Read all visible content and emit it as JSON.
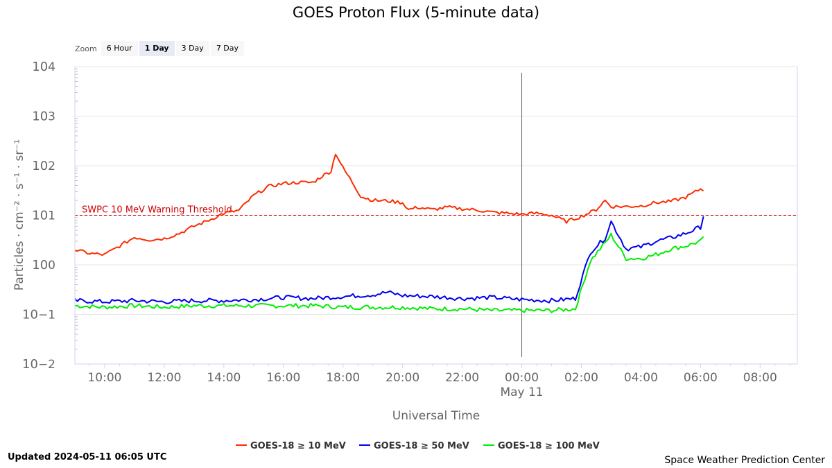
{
  "title": "GOES Proton Flux (5-minute data)",
  "zoom": {
    "label": "Zoom",
    "buttons": [
      {
        "label": "6 Hour",
        "active": false
      },
      {
        "label": "1 Day",
        "active": true
      },
      {
        "label": "3 Day",
        "active": false
      },
      {
        "label": "7 Day",
        "active": false
      }
    ]
  },
  "updated": "Updated 2024-05-11 06:05 UTC",
  "credit": "Space Weather Prediction Center",
  "colors": {
    "series_10": "#ff2a00",
    "series_50": "#0000ee",
    "series_100": "#00ee00",
    "threshold": "#cc0000",
    "grid": "#e6e6e6",
    "axis": "#999999"
  },
  "chart_data": {
    "type": "line",
    "title": "GOES Proton Flux (5-minute data)",
    "xlabel": "Universal Time",
    "ylabel": "Particles · cm⁻² · s⁻¹ · sr⁻¹",
    "y_scale": "log",
    "xlim": [
      "2024-05-10 09:00",
      "2024-05-11 09:30"
    ],
    "ylim": [
      0.01,
      10000
    ],
    "grid": true,
    "legend": "bottom-center",
    "x_ticks": [
      "10:00",
      "12:00",
      "14:00",
      "16:00",
      "18:00",
      "20:00",
      "22:00",
      "00:00",
      "02:00",
      "04:00",
      "06:00",
      "08:00"
    ],
    "x_tick_hours": [
      10,
      12,
      14,
      16,
      18,
      20,
      22,
      24,
      26,
      28,
      30,
      32
    ],
    "date_label": "May 11",
    "date_label_hour": 24,
    "y_ticks": [
      {
        "base": "10",
        "exp": "4",
        "value": 10000
      },
      {
        "base": "10",
        "exp": "3",
        "value": 1000
      },
      {
        "base": "10",
        "exp": "2",
        "value": 100
      },
      {
        "base": "10",
        "exp": "1",
        "value": 10
      },
      {
        "base": "10",
        "exp": "0",
        "value": 1
      },
      {
        "base": "10",
        "exp": "−1",
        "value": 0.1
      },
      {
        "base": "10",
        "exp": "−2",
        "value": 0.01
      }
    ],
    "crosshair_hour": 24,
    "threshold": {
      "label": "SWPC 10 MeV Warning Threshold",
      "value": 10
    },
    "series": [
      {
        "name": "GOES-18 ≥ 10 MeV",
        "x_hours": [
          9.0,
          9.5,
          10.0,
          10.5,
          11.0,
          11.5,
          12.0,
          12.5,
          13.0,
          13.5,
          14.0,
          14.5,
          15.0,
          15.5,
          16.0,
          16.5,
          17.0,
          17.3,
          17.6,
          17.75,
          18.0,
          18.3,
          18.6,
          19.0,
          19.5,
          20.0,
          20.2,
          20.5,
          21.0,
          21.5,
          22.0,
          22.5,
          23.0,
          23.5,
          24.0,
          24.5,
          25.0,
          25.5,
          26.0,
          26.5,
          26.8,
          27.0,
          27.5,
          28.0,
          28.5,
          29.0,
          29.5,
          30.0,
          30.1
        ],
        "values": [
          2.0,
          1.7,
          1.6,
          2.4,
          3.6,
          3.2,
          3.4,
          4.3,
          6.0,
          8.0,
          11.0,
          12.5,
          25.0,
          38.0,
          44.0,
          46.0,
          46.0,
          62.0,
          78.0,
          180.0,
          90.0,
          48.0,
          24.0,
          20.0,
          19.5,
          18.0,
          13.0,
          14.5,
          13.0,
          14.5,
          13.5,
          12.8,
          11.5,
          11.0,
          10.5,
          11.0,
          10.0,
          7.5,
          9.5,
          13.0,
          20.0,
          15.0,
          15.0,
          15.5,
          18.0,
          19.0,
          23.0,
          34.0,
          31.0
        ]
      },
      {
        "name": "GOES-18 ≥ 50 MeV",
        "x_hours": [
          9.0,
          10.0,
          11.0,
          12.0,
          13.0,
          14.0,
          15.0,
          16.0,
          17.0,
          18.0,
          19.0,
          19.5,
          20.0,
          21.0,
          22.0,
          23.0,
          24.0,
          25.0,
          25.8,
          26.3,
          26.8,
          27.0,
          27.5,
          28.0,
          28.5,
          29.0,
          29.5,
          30.0,
          30.1
        ],
        "values": [
          0.19,
          0.18,
          0.19,
          0.18,
          0.19,
          0.19,
          0.2,
          0.22,
          0.21,
          0.23,
          0.25,
          0.28,
          0.24,
          0.23,
          0.21,
          0.22,
          0.2,
          0.19,
          0.21,
          1.8,
          3.5,
          7.5,
          2.1,
          2.3,
          3.0,
          3.5,
          4.3,
          5.8,
          9.5
        ]
      },
      {
        "name": "GOES-18 ≥ 100 MeV",
        "x_hours": [
          9.0,
          10.0,
          11.0,
          12.0,
          13.0,
          14.0,
          15.0,
          16.0,
          17.0,
          18.0,
          19.0,
          20.0,
          21.0,
          22.0,
          23.0,
          24.0,
          25.0,
          25.8,
          26.3,
          26.8,
          27.0,
          27.5,
          28.0,
          28.5,
          29.0,
          29.5,
          30.0,
          30.1
        ],
        "values": [
          0.15,
          0.14,
          0.15,
          0.14,
          0.15,
          0.15,
          0.15,
          0.15,
          0.15,
          0.14,
          0.14,
          0.14,
          0.13,
          0.13,
          0.12,
          0.12,
          0.12,
          0.13,
          1.2,
          2.8,
          4.0,
          1.35,
          1.35,
          1.6,
          2.1,
          2.4,
          3.0,
          3.7
        ]
      }
    ]
  }
}
